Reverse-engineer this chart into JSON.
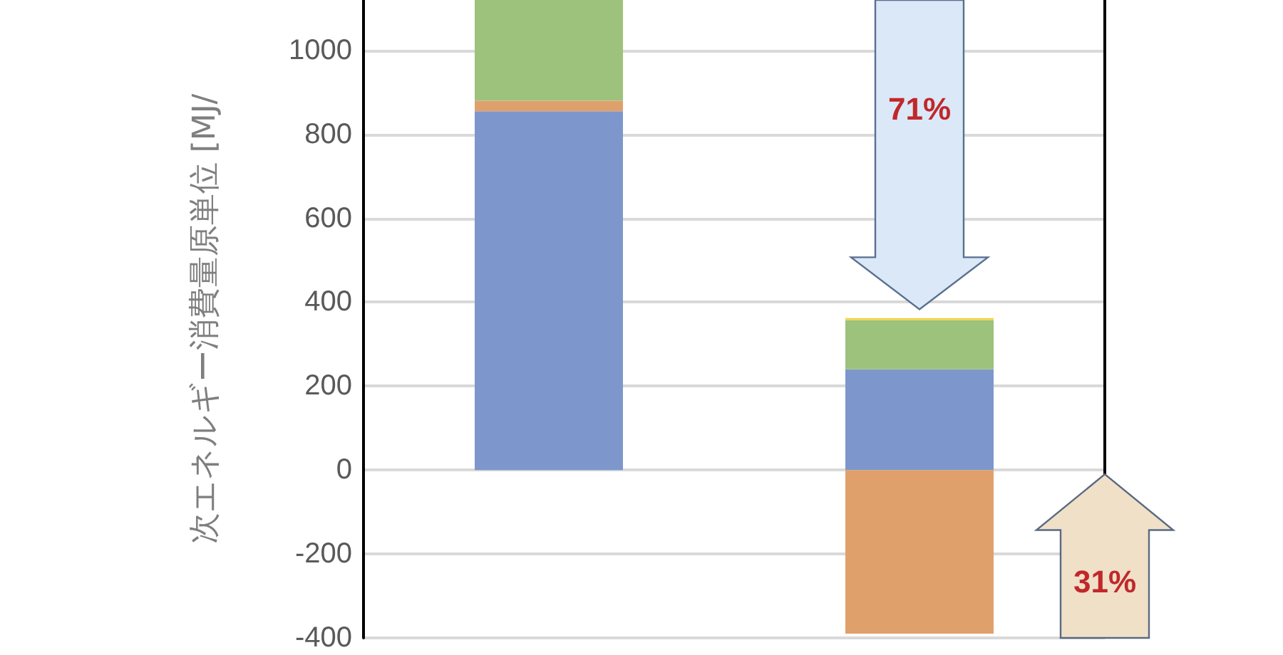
{
  "chart_data": {
    "type": "bar",
    "stacked": true,
    "ylabel": "次エネルギー消費量原単位 [MJ/",
    "categories": [
      null,
      null
    ],
    "series": [
      {
        "color": "#7d97cc",
        "values": [
          855,
          240
        ]
      },
      {
        "color": "#e0a06c",
        "values": [
          25,
          -390
        ]
      },
      {
        "color": "#9cc27c",
        "values": [
          240,
          117
        ]
      },
      {
        "color": "#f2d44a",
        "values": [
          null,
          5
        ]
      }
    ],
    "ylim": [
      -400,
      1120
    ],
    "yticks": [
      -400,
      -200,
      0,
      200,
      400,
      600,
      800,
      1000
    ],
    "grid": "y",
    "annotations": [
      "71%",
      "31%"
    ]
  }
}
